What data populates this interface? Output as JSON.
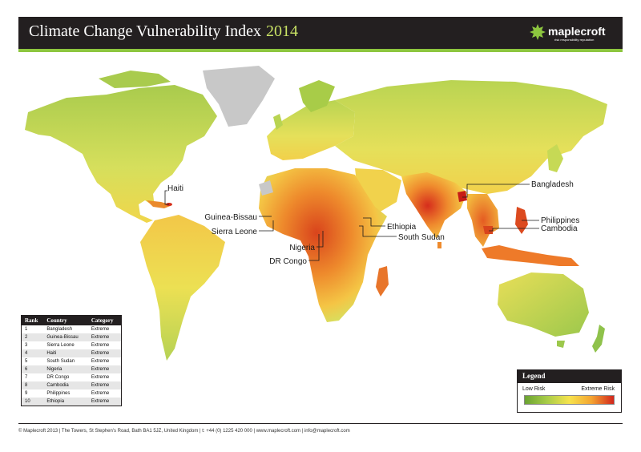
{
  "header": {
    "title": "Climate Change Vulnerability Index",
    "year": "2014",
    "logo_text": "maplecroft",
    "logo_tagline": "risk responsibility reputation"
  },
  "map_labels": [
    {
      "name": "haiti-label",
      "text": "Haiti"
    },
    {
      "name": "guinea-bissau-label",
      "text": "Guinea-Bissau"
    },
    {
      "name": "sierra-leone-label",
      "text": "Sierra Leone"
    },
    {
      "name": "nigeria-label",
      "text": "Nigeria"
    },
    {
      "name": "dr-congo-label",
      "text": "DR Congo"
    },
    {
      "name": "ethiopia-label",
      "text": "Ethiopia"
    },
    {
      "name": "south-sudan-label",
      "text": "South Sudan"
    },
    {
      "name": "bangladesh-label",
      "text": "Bangladesh"
    },
    {
      "name": "philippines-label",
      "text": "Philippines"
    },
    {
      "name": "cambodia-label",
      "text": "Cambodia"
    }
  ],
  "rank_table": {
    "headers": [
      "Rank",
      "Country",
      "Category"
    ],
    "rows": [
      [
        "1",
        "Bangladesh",
        "Extreme"
      ],
      [
        "2",
        "Guinea-Bissau",
        "Extreme"
      ],
      [
        "3",
        "Sierra Leone",
        "Extreme"
      ],
      [
        "4",
        "Haiti",
        "Extreme"
      ],
      [
        "5",
        "South Sudan",
        "Extreme"
      ],
      [
        "6",
        "Nigeria",
        "Extreme"
      ],
      [
        "7",
        "DR Congo",
        "Extreme"
      ],
      [
        "8",
        "Cambodia",
        "Extreme"
      ],
      [
        "9",
        "Philippines",
        "Extreme"
      ],
      [
        "10",
        "Ethiopia",
        "Extreme"
      ]
    ]
  },
  "legend": {
    "title": "Legend",
    "low_label": "Low Risk",
    "high_label": "Extreme Risk",
    "gradient": [
      "#6aa331",
      "#a8cc48",
      "#f6e34d",
      "#f4a431",
      "#d2261c"
    ]
  },
  "footer": {
    "text": "© Maplecroft 2013 | The Towers, St Stephen's Road, Bath BA1 5JZ, United Kingdom | t: +44 (0) 1225 420 000 | www.maplecroft.com | info@maplecroft.com"
  },
  "colors": {
    "header_bg": "#231f20",
    "accent": "#8dc63f",
    "no_data": "#c8c8c8",
    "ocean": "#ffffff"
  }
}
